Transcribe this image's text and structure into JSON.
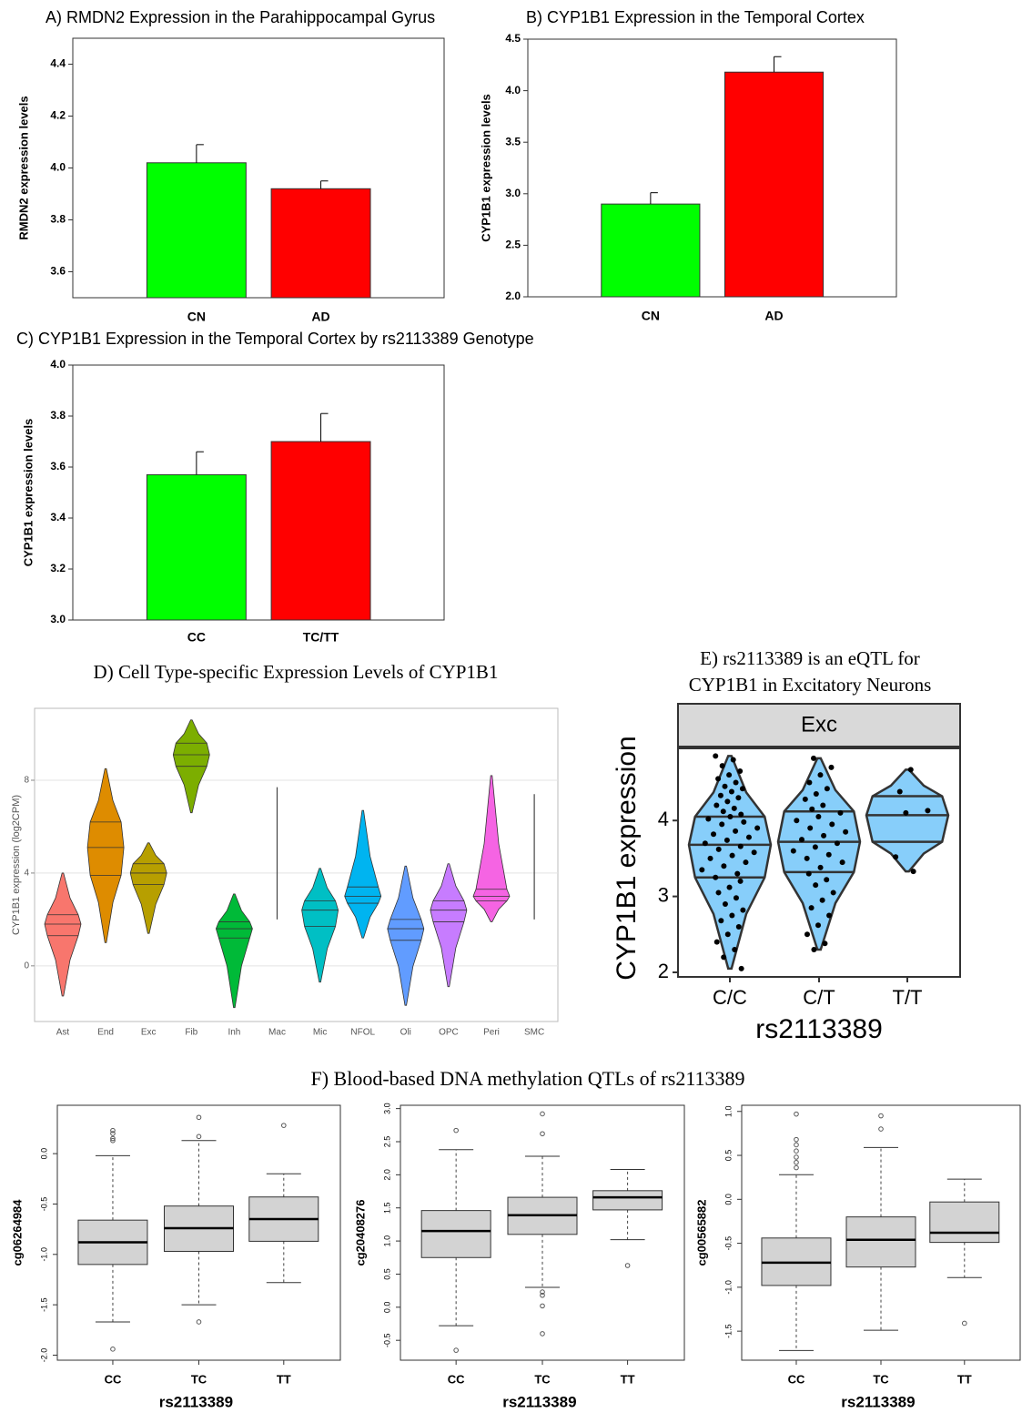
{
  "chart_data": [
    {
      "type": "bar",
      "title": "A) RMDN2 Expression in the Parahippocampal Gyrus",
      "ylabel": "RMDN2 expression levels",
      "categories": [
        "CN",
        "AD"
      ],
      "values": [
        4.02,
        3.92
      ],
      "errors": [
        0.07,
        0.03
      ],
      "colors": [
        "#00ff00",
        "#ff0000"
      ],
      "ylim": [
        3.5,
        4.5
      ],
      "yticks": [
        3.6,
        3.8,
        {
          "value": 4,
          "label": "4.0"
        },
        4.2,
        4.4
      ]
    },
    {
      "type": "bar",
      "title": "B) CYP1B1 Expression in the Temporal Cortex",
      "ylabel": "CYP1B1 expression levels",
      "categories": [
        "CN",
        "AD"
      ],
      "values": [
        2.9,
        4.18
      ],
      "errors": [
        0.11,
        0.15
      ],
      "colors": [
        "#00ff00",
        "#ff0000"
      ],
      "ylim": [
        2,
        4.5
      ],
      "yticks": [
        {
          "value": 2,
          "label": "2.0"
        },
        2.5,
        {
          "value": 3,
          "label": "3.0"
        },
        3.5,
        {
          "value": 4,
          "label": "4.0"
        },
        4.5
      ]
    },
    {
      "type": "bar",
      "title": "C) CYP1B1 Expression in the Temporal Cortex by rs2113389 Genotype",
      "ylabel": "CYP1B1 expression levels",
      "categories": [
        "CC",
        "TC/TT"
      ],
      "values": [
        3.57,
        3.7
      ],
      "errors": [
        0.09,
        0.11
      ],
      "colors": [
        "#00ff00",
        "#ff0000"
      ],
      "ylim": [
        3,
        4
      ],
      "yticks": [
        {
          "value": 3,
          "label": "3.0"
        },
        3.2,
        3.4,
        3.6,
        3.8,
        {
          "value": 4,
          "label": "4.0"
        }
      ]
    },
    {
      "type": "violin",
      "title": "D) Cell Type-specific Expression Levels of CYP1B1",
      "ylabel": "CYP1B1 expression (log2CPM)",
      "categories": [
        "Ast",
        "End",
        "Exc",
        "Fib",
        "Inh",
        "Mac",
        "Mic",
        "NFOL",
        "Oli",
        "OPC",
        "Peri",
        "SMC"
      ],
      "min": [
        -1.3,
        1.0,
        1.4,
        6.6,
        -1.8,
        2.0,
        -0.7,
        1.2,
        -1.7,
        -0.9,
        1.9,
        2.0
      ],
      "q1": [
        1.3,
        3.9,
        3.5,
        8.6,
        1.2,
        null,
        1.7,
        2.7,
        1.1,
        1.9,
        2.8,
        null
      ],
      "median": [
        1.8,
        5.1,
        4.0,
        9.1,
        1.6,
        null,
        2.4,
        3.0,
        1.6,
        2.4,
        3.0,
        null
      ],
      "q3": [
        2.2,
        6.2,
        4.4,
        9.6,
        1.9,
        null,
        2.8,
        3.4,
        2.0,
        2.8,
        3.3,
        null
      ],
      "max": [
        4.0,
        8.5,
        5.3,
        10.6,
        3.1,
        7.7,
        4.2,
        6.7,
        4.3,
        4.4,
        8.2,
        7.4
      ],
      "colors": [
        "#f8766d",
        "#de8c00",
        "#b79f00",
        "#7cae00",
        "#00ba38",
        "#00c08b",
        "#00bfc4",
        "#00b4f0",
        "#619cff",
        "#c77cff",
        "#f564e3",
        "#ff64b0"
      ],
      "ylim": [
        -2.4,
        11.1
      ],
      "yticks": [
        0,
        4,
        8
      ],
      "grid": true
    },
    {
      "type": "violin_points",
      "title": [
        "E) rs2113389 is an eQTL for",
        "CYP1B1 in Excitatory Neurons"
      ],
      "facet": "Exc",
      "ylabel": "CYP1B1 expression",
      "xlabel": "rs2113389",
      "categories": [
        "C/C",
        "C/T",
        "T/T"
      ],
      "min": [
        2.05,
        2.3,
        3.33
      ],
      "q1": [
        3.25,
        3.32,
        3.72
      ],
      "median": [
        3.68,
        3.72,
        4.07
      ],
      "q3": [
        4.05,
        4.12,
        4.32
      ],
      "max": [
        4.85,
        4.82,
        4.67
      ],
      "points": [
        [
          4.85,
          4.8,
          4.72,
          4.65,
          4.6,
          4.55,
          4.5,
          4.45,
          4.42,
          4.38,
          4.33,
          4.3,
          4.25,
          4.2,
          4.16,
          4.12,
          4.08,
          4.05,
          4.02,
          3.98,
          3.95,
          3.9,
          3.86,
          3.82,
          3.78,
          3.74,
          3.7,
          3.66,
          3.62,
          3.58,
          3.54,
          3.5,
          3.45,
          3.4,
          3.35,
          3.3,
          3.25,
          3.2,
          3.12,
          3.05,
          2.98,
          2.9,
          2.82,
          2.75,
          2.68,
          2.6,
          2.5,
          2.4,
          2.3,
          2.2,
          2.05
        ],
        [
          4.82,
          4.7,
          4.6,
          4.5,
          4.42,
          4.35,
          4.28,
          4.2,
          4.15,
          4.1,
          4.05,
          4.0,
          3.95,
          3.9,
          3.85,
          3.8,
          3.75,
          3.7,
          3.65,
          3.6,
          3.55,
          3.5,
          3.45,
          3.38,
          3.3,
          3.22,
          3.15,
          3.05,
          2.95,
          2.85,
          2.75,
          2.62,
          2.5,
          2.38,
          2.3
        ],
        [
          4.67,
          4.38,
          4.13,
          4.1,
          3.52,
          3.33
        ]
      ],
      "color": "#87cefa",
      "ylim": [
        1.94,
        4.95
      ],
      "yticks": [
        2,
        3,
        4
      ]
    },
    {
      "type": "boxplot",
      "title": "F) Blood-based DNA methylation QTLs of rs2113389",
      "color": "#d3d3d3",
      "panels": [
        {
          "ylabel": "cg06264984",
          "xlabel": "rs2113389",
          "categories": [
            "CC",
            "TC",
            "TT"
          ],
          "whisker_low": [
            -1.67,
            -1.5,
            -1.28
          ],
          "q1": [
            -1.1,
            -0.97,
            -0.87
          ],
          "median": [
            -0.88,
            -0.74,
            -0.65
          ],
          "q3": [
            -0.66,
            -0.52,
            -0.43
          ],
          "whisker_high": [
            -0.02,
            0.13,
            -0.2
          ],
          "outliers": [
            [
              0.23,
              0.2,
              0.15,
              0.13,
              -1.94
            ],
            [
              0.36,
              0.17,
              -1.67
            ],
            [
              0.28
            ]
          ],
          "ylim": [
            -2.05,
            0.48
          ],
          "yticks": [
            {
              "value": -2,
              "label": "-2.0"
            },
            -1.5,
            {
              "value": -1,
              "label": "-1.0"
            },
            -0.5,
            {
              "value": 0,
              "label": "0.0"
            }
          ]
        },
        {
          "ylabel": "cg20408276",
          "xlabel": "rs2113389",
          "categories": [
            "CC",
            "TC",
            "TT"
          ],
          "whisker_low": [
            -0.28,
            0.3,
            1.02
          ],
          "q1": [
            0.75,
            1.1,
            1.47
          ],
          "median": [
            1.15,
            1.39,
            1.66
          ],
          "q3": [
            1.46,
            1.66,
            1.76
          ],
          "whisker_high": [
            2.38,
            2.28,
            2.08
          ],
          "outliers": [
            [
              2.67,
              -0.65
            ],
            [
              2.92,
              2.62,
              0.23,
              0.18,
              0.02,
              -0.4
            ],
            [
              0.63
            ]
          ],
          "ylim": [
            -0.8,
            3.05
          ],
          "yticks": [
            -0.5,
            {
              "value": 0,
              "label": "0.0"
            },
            0.5,
            {
              "value": 1,
              "label": "1.0"
            },
            1.5,
            {
              "value": 2,
              "label": "2.0"
            },
            2.5,
            {
              "value": 3,
              "label": "3.0"
            }
          ]
        },
        {
          "ylabel": "cg00565882",
          "xlabel": "rs2113389",
          "categories": [
            "CC",
            "TC",
            "TT"
          ],
          "whisker_low": [
            -1.72,
            -1.49,
            -0.89
          ],
          "q1": [
            -0.98,
            -0.77,
            -0.49
          ],
          "median": [
            -0.72,
            -0.46,
            -0.38
          ],
          "q3": [
            -0.44,
            -0.2,
            -0.03
          ],
          "whisker_high": [
            0.28,
            0.59,
            0.23
          ],
          "outliers": [
            [
              0.97,
              0.68,
              0.62,
              0.55,
              0.48,
              0.42,
              0.36
            ],
            [
              0.95,
              0.8
            ],
            [
              -1.41
            ]
          ],
          "ylim": [
            -1.83,
            1.07
          ],
          "yticks": [
            -1.5,
            {
              "value": -1,
              "label": "-1.0"
            },
            -0.5,
            {
              "value": 0,
              "label": "0.0"
            },
            0.5,
            {
              "value": 1,
              "label": "1.0"
            }
          ]
        }
      ]
    }
  ]
}
